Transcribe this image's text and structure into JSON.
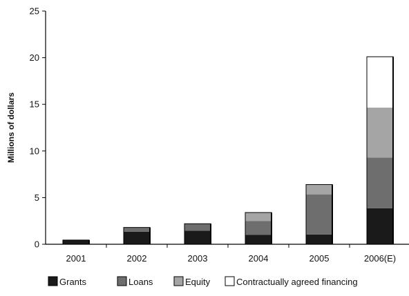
{
  "chart_data": {
    "type": "bar",
    "stacked": true,
    "categories": [
      "2001",
      "2002",
      "2003",
      "2004",
      "2005",
      "2006(E)"
    ],
    "series": [
      {
        "name": "Grants",
        "values": [
          0.45,
          1.35,
          1.45,
          1.0,
          1.05,
          3.85
        ],
        "color": "#1a1a1a"
      },
      {
        "name": "Loans",
        "values": [
          0.0,
          0.45,
          0.75,
          1.5,
          4.3,
          5.45
        ],
        "color": "#6e6e6e"
      },
      {
        "name": "Equity",
        "values": [
          0.0,
          0.0,
          0.0,
          0.9,
          1.05,
          5.35
        ],
        "color": "#a5a5a5"
      },
      {
        "name": "Contractually agreed financing",
        "values": [
          0.0,
          0.0,
          0.0,
          0.0,
          0.0,
          5.45
        ],
        "color": "#ffffff"
      }
    ],
    "ylabel": "Millions of dollars",
    "xlabel": "",
    "ylim": [
      0,
      25
    ],
    "yticks": [
      0,
      5,
      10,
      15,
      20,
      25
    ],
    "grid": false,
    "legend_position": "bottom"
  }
}
